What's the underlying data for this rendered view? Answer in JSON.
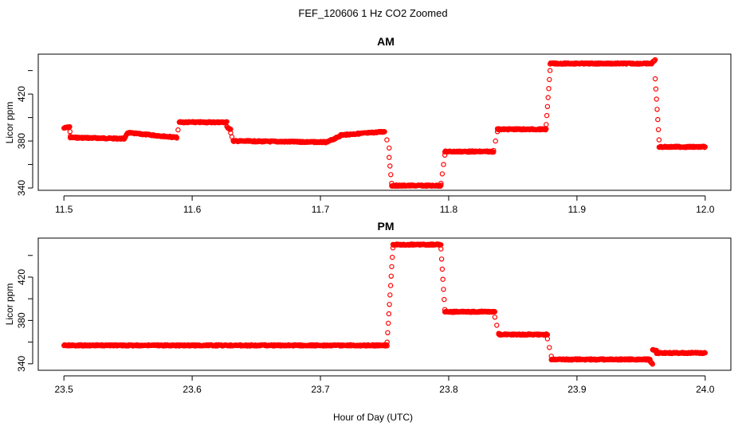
{
  "figure_title": "FEF_120606  1 Hz CO2 Zoomed",
  "colors": {
    "points": "#ff0000",
    "frame": "#000000",
    "background": "#ffffff"
  },
  "chart_data": [
    {
      "type": "scatter",
      "title": "AM",
      "xlabel": "",
      "ylabel": "Licor ppm",
      "xlim": [
        11.48,
        12.02
      ],
      "ylim": [
        338,
        454
      ],
      "xticks": [
        11.5,
        11.6,
        11.7,
        11.8,
        11.9,
        12.0
      ],
      "xtick_labels": [
        "11.5",
        "11.6",
        "11.7",
        "11.8",
        "11.9",
        "12.0"
      ],
      "yticks": [
        340,
        380,
        420
      ],
      "ytick_labels": [
        "340",
        "380",
        "420"
      ],
      "grid": false,
      "marker": "open-circle",
      "segments": [
        {
          "x": [
            11.5,
            11.5045
          ],
          "y": [
            391,
            392
          ]
        },
        {
          "x": [
            11.5045,
            11.505
          ],
          "y": [
            392,
            384
          ]
        },
        {
          "x": [
            11.505,
            11.547
          ],
          "y": [
            383,
            382
          ]
        },
        {
          "x": [
            11.547,
            11.55
          ],
          "y": [
            382,
            387
          ]
        },
        {
          "x": [
            11.55,
            11.588
          ],
          "y": [
            387,
            383
          ]
        },
        {
          "x": [
            11.588,
            11.59
          ],
          "y": [
            383,
            396
          ]
        },
        {
          "x": [
            11.59,
            11.627
          ],
          "y": [
            396,
            396
          ]
        },
        {
          "x": [
            11.627,
            11.63
          ],
          "y": [
            392,
            390
          ]
        },
        {
          "x": [
            11.63,
            11.632
          ],
          "y": [
            387,
            380
          ]
        },
        {
          "x": [
            11.632,
            11.705
          ],
          "y": [
            380,
            379
          ]
        },
        {
          "x": [
            11.705,
            11.715
          ],
          "y": [
            379,
            384
          ]
        },
        {
          "x": [
            11.715,
            11.75
          ],
          "y": [
            385,
            388
          ]
        },
        {
          "x": [
            11.75,
            11.7536
          ],
          "y": [
            388,
            374
          ]
        },
        {
          "x": [
            11.7536,
            11.7555
          ],
          "y": [
            366,
            344
          ]
        },
        {
          "x": [
            11.7555,
            11.794
          ],
          "y": [
            342,
            342
          ]
        },
        {
          "x": [
            11.794,
            11.797
          ],
          "y": [
            344,
            368
          ]
        },
        {
          "x": [
            11.797,
            11.835
          ],
          "y": [
            371,
            371
          ]
        },
        {
          "x": [
            11.835,
            11.838
          ],
          "y": [
            372,
            388
          ]
        },
        {
          "x": [
            11.838,
            11.876
          ],
          "y": [
            390,
            390
          ]
        },
        {
          "x": [
            11.876,
            11.879
          ],
          "y": [
            394,
            440
          ]
        },
        {
          "x": [
            11.879,
            11.958
          ],
          "y": [
            446,
            446
          ]
        },
        {
          "x": [
            11.958,
            11.961
          ],
          "y": [
            446,
            449
          ]
        },
        {
          "x": [
            11.961,
            11.964
          ],
          "y": [
            433,
            381
          ]
        },
        {
          "x": [
            11.964,
            12.0
          ],
          "y": [
            375,
            375
          ]
        }
      ]
    },
    {
      "type": "scatter",
      "title": "PM",
      "xlabel": "",
      "ylabel": "Licor ppm",
      "xlim": [
        23.48,
        24.02
      ],
      "ylim": [
        334,
        456
      ],
      "xticks": [
        23.5,
        23.6,
        23.7,
        23.8,
        23.9,
        24.0
      ],
      "xtick_labels": [
        "23.5",
        "23.6",
        "23.7",
        "23.8",
        "23.9",
        "24.0"
      ],
      "yticks": [
        340,
        380,
        420
      ],
      "ytick_labels": [
        "340",
        "380",
        "420"
      ],
      "grid": false,
      "marker": "open-circle",
      "segments": [
        {
          "x": [
            23.5,
            23.63
          ],
          "y": [
            357,
            357
          ]
        },
        {
          "x": [
            23.63,
            23.752
          ],
          "y": [
            357,
            357
          ]
        },
        {
          "x": [
            23.752,
            23.7565
          ],
          "y": [
            360,
            447
          ]
        },
        {
          "x": [
            23.7565,
            23.794
          ],
          "y": [
            450,
            450
          ]
        },
        {
          "x": [
            23.794,
            23.797
          ],
          "y": [
            446,
            390
          ]
        },
        {
          "x": [
            23.797,
            23.836
          ],
          "y": [
            388,
            388
          ]
        },
        {
          "x": [
            23.836,
            23.839
          ],
          "y": [
            383,
            368
          ]
        },
        {
          "x": [
            23.839,
            23.877
          ],
          "y": [
            367,
            367
          ]
        },
        {
          "x": [
            23.877,
            23.88
          ],
          "y": [
            363,
            347
          ]
        },
        {
          "x": [
            23.88,
            23.957
          ],
          "y": [
            344,
            344
          ]
        },
        {
          "x": [
            23.957,
            23.959
          ],
          "y": [
            342,
            340
          ]
        },
        {
          "x": [
            23.959,
            23.962
          ],
          "y": [
            353,
            352
          ]
        },
        {
          "x": [
            23.962,
            24.0
          ],
          "y": [
            350,
            350
          ]
        }
      ]
    }
  ],
  "shared_xlabel": "Hour of Day (UTC)"
}
